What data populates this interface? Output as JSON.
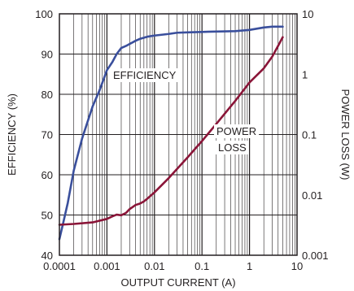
{
  "chart_data": {
    "type": "line",
    "title": "",
    "xlabel": "OUTPUT CURRENT (A)",
    "ylabel_left": "EFFICIENCY (%)",
    "ylabel_right": "POWER LOSS (W)",
    "x_scale": "log",
    "xlim": [
      0.0001,
      10
    ],
    "ylim_left": [
      40,
      100
    ],
    "y_right_scale": "log",
    "ylim_right": [
      0.001,
      10
    ],
    "grid": true,
    "x_ticks": [
      "0.0001",
      "0.001",
      "0.01",
      "0.1",
      "1",
      "10"
    ],
    "y_left_ticks": [
      "40",
      "50",
      "60",
      "70",
      "80",
      "90",
      "100"
    ],
    "y_right_ticks": [
      "0.001",
      "0.01",
      "0.1",
      "1",
      "10"
    ],
    "annotations": [
      {
        "text": "EFFICIENCY",
        "series": "efficiency"
      },
      {
        "text": "POWER",
        "series": "power_loss"
      },
      {
        "text": "LOSS",
        "series": "power_loss"
      }
    ],
    "series": [
      {
        "key": "efficiency",
        "axis": "left",
        "color": "#3a4f9c",
        "x": [
          0.0001,
          0.00012,
          0.00015,
          0.0002,
          0.0003,
          0.0005,
          0.0007,
          0.001,
          0.0013,
          0.0016,
          0.002,
          0.0025,
          0.003,
          0.004,
          0.005,
          0.007,
          0.01,
          0.02,
          0.03,
          0.05,
          0.1,
          0.2,
          0.5,
          1,
          2,
          3,
          5
        ],
        "y": [
          44,
          48,
          53,
          61,
          69,
          77,
          81,
          86,
          88,
          90,
          91.5,
          92,
          92.5,
          93.3,
          93.8,
          94.3,
          94.6,
          95,
          95.3,
          95.4,
          95.5,
          95.6,
          95.7,
          96,
          96.6,
          96.8,
          96.8
        ]
      },
      {
        "key": "power_loss",
        "axis": "right",
        "color": "#8a1538",
        "x": [
          0.0001,
          0.0002,
          0.0005,
          0.001,
          0.0013,
          0.0016,
          0.002,
          0.0025,
          0.003,
          0.004,
          0.005,
          0.006,
          0.007,
          0.01,
          0.02,
          0.05,
          0.1,
          0.2,
          0.5,
          1,
          2,
          3,
          4,
          5
        ],
        "y": [
          0.0032,
          0.0033,
          0.0035,
          0.004,
          0.0044,
          0.0047,
          0.0046,
          0.005,
          0.0058,
          0.0068,
          0.0072,
          0.0078,
          0.0086,
          0.011,
          0.019,
          0.042,
          0.078,
          0.15,
          0.36,
          0.73,
          1.25,
          1.95,
          2.95,
          4.1
        ]
      }
    ]
  }
}
